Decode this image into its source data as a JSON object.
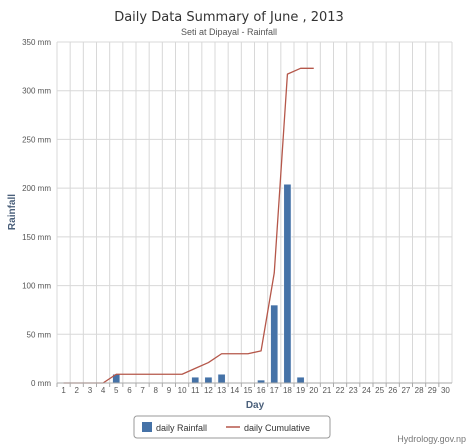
{
  "chart_data": {
    "type": "bar",
    "title": "Daily Data Summary of June , 2013",
    "subtitle": "Seti at Dipayal - Rainfall",
    "xlabel": "Day",
    "ylabel": "Rainfall",
    "categories": [
      "1",
      "2",
      "3",
      "4",
      "5",
      "6",
      "7",
      "8",
      "9",
      "10",
      "11",
      "12",
      "13",
      "14",
      "15",
      "16",
      "17",
      "18",
      "19",
      "20",
      "21",
      "22",
      "23",
      "24",
      "25",
      "26",
      "27",
      "28",
      "29",
      "30"
    ],
    "y_ticks": [
      "0 mm",
      "50 mm",
      "100 mm",
      "150 mm",
      "200 mm",
      "250 mm",
      "300 mm",
      "350 mm"
    ],
    "ylim": [
      0,
      350
    ],
    "grid": true,
    "legend_position": "bottom-center",
    "series": [
      {
        "name": "daily Rainfall",
        "type": "bar",
        "color": "#4572a7",
        "values": [
          0,
          0,
          0,
          0,
          9,
          0,
          0,
          0,
          0,
          0,
          6,
          6,
          9,
          0,
          0,
          3,
          80,
          204,
          6,
          0,
          null,
          null,
          null,
          null,
          null,
          null,
          null,
          null,
          null,
          null
        ]
      },
      {
        "name": "daily Cumulative",
        "type": "line",
        "color": "#b5574a",
        "values": [
          0,
          0,
          0,
          0,
          9,
          9,
          9,
          9,
          9,
          9,
          15,
          21,
          30,
          30,
          30,
          33,
          113,
          317,
          323,
          323,
          null,
          null,
          null,
          null,
          null,
          null,
          null,
          null,
          null,
          null
        ]
      }
    ]
  },
  "credit": "Hydrology.gov.np"
}
